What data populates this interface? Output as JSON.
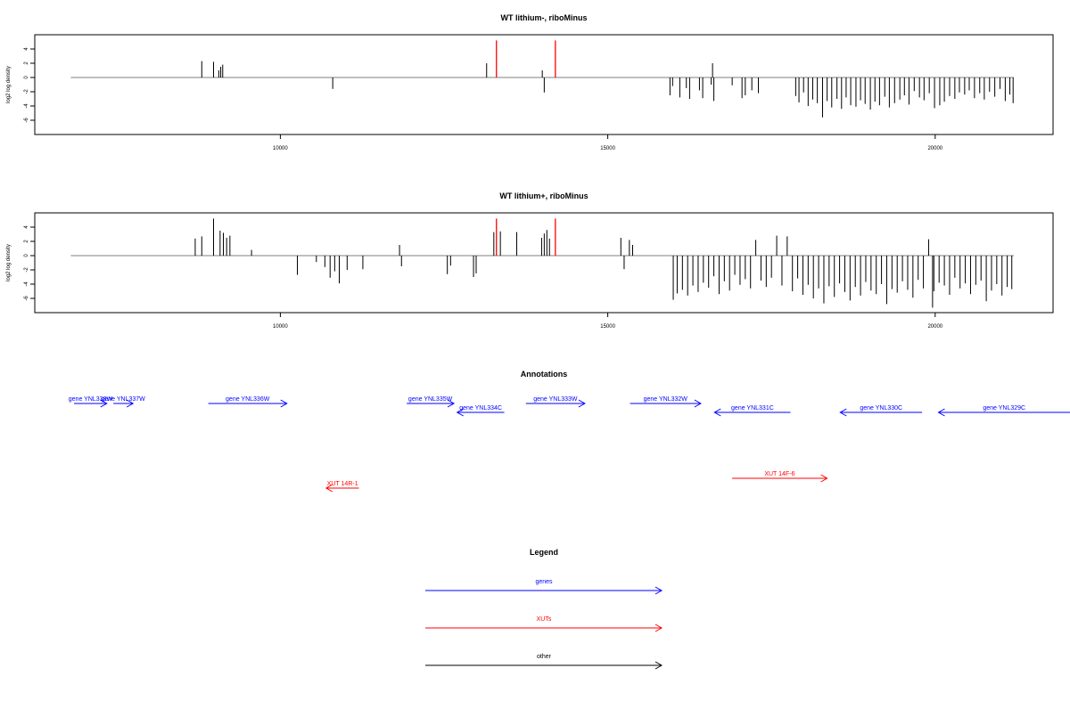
{
  "chart_data": [
    {
      "type": "bar",
      "title": "WT lithium-, riboMinus",
      "ylabel": "log2 log density",
      "xlabel": "",
      "xlim": [
        6250,
        21800
      ],
      "ylim": [
        -8,
        6
      ],
      "xticks": [
        10000,
        15000,
        20000
      ],
      "xtick_labels": [
        "10000",
        "15000",
        "20000"
      ],
      "yticks": [
        4,
        2,
        0,
        -2,
        -4,
        -6
      ],
      "ytick_labels": [
        "4",
        "2",
        "0",
        "-2",
        "-4",
        "-6"
      ],
      "baseline": {
        "x_start": 6800,
        "x_end": 21200,
        "y": 0,
        "color": "#999999"
      },
      "markers": {
        "x": [
          13300,
          14200
        ],
        "color": "#ff0000",
        "ylim": [
          0,
          5.2
        ]
      },
      "series": [
        {
          "values_x": [
            8800,
            8980,
            9060,
            9090,
            9120,
            10800,
            13150,
            14000,
            14030,
            16600,
            15950,
            15990,
            16100,
            16200,
            16250,
            16400,
            16450,
            16580,
            16620,
            16900,
            17050,
            17100,
            17200,
            17300,
            17870,
            17920,
            17990,
            18060,
            18130,
            18200,
            18280,
            18350,
            18420,
            18500,
            18570,
            18640,
            18710,
            18790,
            18860,
            18930,
            19010,
            19080,
            19150,
            19230,
            19300,
            19380,
            19460,
            19530,
            19600,
            19680,
            19760,
            19830,
            19910,
            19990,
            20070,
            20140,
            20220,
            20300,
            20370,
            20450,
            20520,
            20600,
            20680,
            20750,
            20830,
            20910,
            20990,
            21070,
            21140,
            21190
          ],
          "values_y": [
            2.3,
            2.2,
            1.0,
            1.5,
            1.8,
            -1.6,
            2.0,
            1.0,
            -2.1,
            2.0,
            -2.5,
            -1.2,
            -2.8,
            -1.5,
            -3.0,
            -1.8,
            -2.9,
            -1.0,
            -3.3,
            -1.1,
            -2.9,
            -2.5,
            -1.8,
            -2.2,
            -2.6,
            -3.5,
            -2.1,
            -4.0,
            -3.1,
            -3.6,
            -5.6,
            -3.3,
            -4.2,
            -3.0,
            -4.4,
            -2.8,
            -3.9,
            -4.1,
            -3.2,
            -3.7,
            -4.5,
            -3.4,
            -3.9,
            -2.7,
            -4.2,
            -3.6,
            -3.1,
            -2.5,
            -3.8,
            -1.9,
            -2.8,
            -3.2,
            -2.2,
            -4.3,
            -3.9,
            -3.4,
            -2.6,
            -3.0,
            -2.1,
            -2.4,
            -1.8,
            -2.9,
            -2.2,
            -3.1,
            -2.0,
            -2.7,
            -1.6,
            -3.3,
            -2.4,
            -3.6
          ]
        }
      ]
    },
    {
      "type": "bar",
      "title": "WT lithium+, riboMinus",
      "ylabel": "log2 log density",
      "xlabel": "",
      "xlim": [
        6250,
        21800
      ],
      "ylim": [
        -8,
        6
      ],
      "xticks": [
        10000,
        15000,
        20000
      ],
      "xtick_labels": [
        "10000",
        "15000",
        "20000"
      ],
      "yticks": [
        4,
        2,
        0,
        -2,
        -4,
        -6
      ],
      "ytick_labels": [
        "4",
        "2",
        "0",
        "-2",
        "-4",
        "-6"
      ],
      "baseline": {
        "x_start": 6800,
        "x_end": 21200,
        "y": 0,
        "color": "#999999"
      },
      "markers": {
        "x": [
          13300,
          14200
        ],
        "color": "#ff0000",
        "ylim": [
          0,
          5.2
        ]
      },
      "series": [
        {
          "values_x": [
            8700,
            8800,
            8980,
            9080,
            9130,
            9180,
            9230,
            9560,
            10260,
            10550,
            10680,
            10760,
            10830,
            10900,
            11020,
            11260,
            11820,
            11850,
            12550,
            12600,
            12950,
            12990,
            13260,
            13360,
            13610,
            13990,
            14030,
            14070,
            14110,
            15200,
            15250,
            15330,
            15380,
            16000,
            16060,
            16140,
            16220,
            16300,
            16380,
            16460,
            16540,
            16620,
            16700,
            16780,
            16860,
            16940,
            17020,
            17100,
            17180,
            17260,
            17340,
            17420,
            17500,
            17580,
            17660,
            17740,
            17820,
            17900,
            17980,
            18060,
            18140,
            18220,
            18300,
            18380,
            18460,
            18540,
            18620,
            18700,
            18780,
            18860,
            18940,
            19020,
            19100,
            19180,
            19260,
            19340,
            19420,
            19500,
            19580,
            19660,
            19740,
            19820,
            19900,
            19980,
            20060,
            20140,
            20220,
            20300,
            20380,
            20460,
            20540,
            20620,
            20700,
            20780,
            20860,
            20940,
            21020,
            21100,
            21170,
            19960
          ],
          "values_y": [
            2.4,
            2.7,
            5.2,
            3.5,
            3.2,
            2.5,
            2.8,
            0.8,
            -2.7,
            -0.9,
            -1.6,
            -3.1,
            -2.2,
            -3.9,
            -2.0,
            -1.9,
            1.5,
            -1.5,
            -2.6,
            -1.4,
            -3.0,
            -2.5,
            3.3,
            3.4,
            3.3,
            2.5,
            3.1,
            3.6,
            2.4,
            2.5,
            -1.9,
            2.2,
            1.5,
            -6.2,
            -5.3,
            -4.8,
            -5.6,
            -4.2,
            -5.1,
            -3.8,
            -4.5,
            -2.9,
            -5.4,
            -3.6,
            -4.9,
            -2.7,
            -4.1,
            -3.3,
            -4.6,
            2.2,
            -3.5,
            -4.4,
            -3.1,
            2.8,
            -4.2,
            2.7,
            -5.0,
            -3.2,
            -5.5,
            -4.1,
            -6.0,
            -4.6,
            -6.7,
            -4.3,
            -5.8,
            -3.9,
            -5.1,
            -6.3,
            -4.4,
            -5.6,
            -3.7,
            -4.9,
            -5.4,
            -4.0,
            -6.8,
            -4.7,
            -5.2,
            -3.6,
            -4.8,
            -5.9,
            -3.4,
            -4.6,
            2.3,
            -5.0,
            -3.8,
            -4.2,
            -5.5,
            -3.1,
            -4.6,
            -3.9,
            -5.4,
            -4.1,
            -3.5,
            -6.4,
            -4.9,
            -4.0,
            -5.6,
            -4.4,
            -4.7,
            -7.3
          ]
        }
      ]
    }
  ],
  "annotations": {
    "title": "Annotations",
    "genes": [
      {
        "label": "gene YNL338W",
        "x_start": 6850,
        "x_end": 7350,
        "strand": "+",
        "row": 0
      },
      {
        "label": "gene YNL337W",
        "x_start": 7450,
        "x_end": 7750,
        "strand": "+",
        "row": 0
      },
      {
        "label": "gene YNL336W",
        "x_start": 8900,
        "x_end": 10100,
        "strand": "+",
        "row": 0
      },
      {
        "label": "gene YNL335W",
        "x_start": 11930,
        "x_end": 12650,
        "strand": "+",
        "row": 0
      },
      {
        "label": "gene YNL334C",
        "x_start": 12700,
        "x_end": 13420,
        "strand": "-",
        "row": 1
      },
      {
        "label": "gene YNL333W",
        "x_start": 13750,
        "x_end": 14650,
        "strand": "+",
        "row": 0
      },
      {
        "label": "gene YNL332W",
        "x_start": 15340,
        "x_end": 16420,
        "strand": "+",
        "row": 0
      },
      {
        "label": "gene YNL331C",
        "x_start": 16630,
        "x_end": 17790,
        "strand": "-",
        "row": 1
      },
      {
        "label": "gene YNL330C",
        "x_start": 18550,
        "x_end": 19800,
        "strand": "-",
        "row": 1
      },
      {
        "label": "gene YNL329C",
        "x_start": 20050,
        "x_end": 22700,
        "strand": "-",
        "row": 1
      }
    ],
    "xuts": [
      {
        "label": "XUT 14R-1",
        "x_start": 10700,
        "x_end": 11200,
        "strand": "-",
        "row": 2
      },
      {
        "label": "XUT 14F-6",
        "x_start": 16900,
        "x_end": 18350,
        "strand": "+",
        "row": 3
      }
    ]
  },
  "legend": {
    "title": "Legend",
    "items": [
      {
        "label": "genes",
        "color": "#0000ff"
      },
      {
        "label": "XUTs",
        "color": "#ff0000"
      },
      {
        "label": "other",
        "color": "#000000"
      }
    ]
  },
  "colors": {
    "gene": "#0000ff",
    "xut": "#ff0000",
    "bar": "#000000",
    "baseline": "#999999",
    "marker": "#ff0000"
  }
}
